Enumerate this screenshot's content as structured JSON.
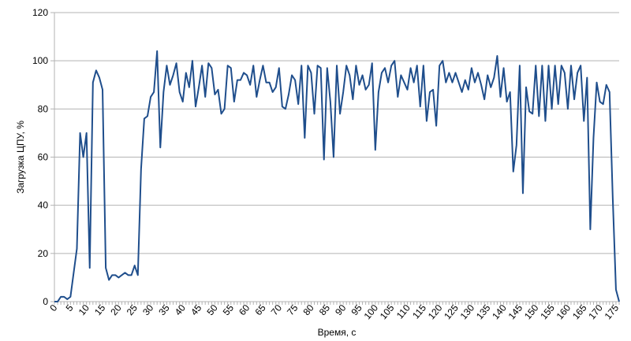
{
  "chart_data": {
    "type": "line",
    "title": "",
    "xlabel": "Время, с",
    "ylabel": "Загрузка ЦПУ, %",
    "xlim": [
      0,
      176
    ],
    "ylim": [
      0,
      120
    ],
    "x_ticks": [
      0,
      5,
      10,
      15,
      20,
      25,
      30,
      35,
      40,
      45,
      50,
      55,
      60,
      65,
      70,
      75,
      80,
      85,
      90,
      95,
      100,
      105,
      110,
      115,
      120,
      125,
      130,
      135,
      140,
      145,
      150,
      155,
      160,
      165,
      170,
      175
    ],
    "y_ticks": [
      0,
      20,
      40,
      60,
      80,
      100,
      120
    ],
    "grid": {
      "horizontal": true,
      "vertical": false
    },
    "legend": "none",
    "series": [
      {
        "color": "#1f4e8c",
        "x": [
          0,
          1,
          2,
          3,
          4,
          5,
          6,
          7,
          8,
          9,
          10,
          11,
          12,
          13,
          14,
          15,
          16,
          17,
          18,
          19,
          20,
          21,
          22,
          23,
          24,
          25,
          26,
          27,
          28,
          29,
          30,
          31,
          32,
          33,
          34,
          35,
          36,
          37,
          38,
          39,
          40,
          41,
          42,
          43,
          44,
          45,
          46,
          47,
          48,
          49,
          50,
          51,
          52,
          53,
          54,
          55,
          56,
          57,
          58,
          59,
          60,
          61,
          62,
          63,
          64,
          65,
          66,
          67,
          68,
          69,
          70,
          71,
          72,
          73,
          74,
          75,
          76,
          77,
          78,
          79,
          80,
          81,
          82,
          83,
          84,
          85,
          86,
          87,
          88,
          89,
          90,
          91,
          92,
          93,
          94,
          95,
          96,
          97,
          98,
          99,
          100,
          101,
          102,
          103,
          104,
          105,
          106,
          107,
          108,
          109,
          110,
          111,
          112,
          113,
          114,
          115,
          116,
          117,
          118,
          119,
          120,
          121,
          122,
          123,
          124,
          125,
          126,
          127,
          128,
          129,
          130,
          131,
          132,
          133,
          134,
          135,
          136,
          137,
          138,
          139,
          140,
          141,
          142,
          143,
          144,
          145,
          146,
          147,
          148,
          149,
          150,
          151,
          152,
          153,
          154,
          155,
          156,
          157,
          158,
          159,
          160,
          161,
          162,
          163,
          164,
          165,
          166,
          167,
          168,
          169,
          170,
          171,
          172,
          173,
          174,
          175,
          176
        ],
        "y": [
          0,
          0,
          2,
          2,
          1,
          2,
          12,
          22,
          70,
          60,
          70,
          14,
          91,
          96,
          93,
          88,
          14,
          9,
          11,
          11,
          10,
          11,
          12,
          11,
          11,
          15,
          11,
          55,
          76,
          77,
          85,
          87,
          104,
          64,
          87,
          98,
          90,
          94,
          99,
          87,
          83,
          95,
          89,
          100,
          81,
          89,
          98,
          85,
          99,
          97,
          86,
          88,
          78,
          80,
          98,
          97,
          83,
          92,
          92,
          95,
          94,
          90,
          98,
          85,
          92,
          98,
          91,
          91,
          87,
          89,
          97,
          81,
          80,
          86,
          94,
          92,
          82,
          98,
          68,
          98,
          95,
          78,
          98,
          97,
          59,
          97,
          83,
          60,
          98,
          78,
          87,
          98,
          94,
          84,
          98,
          90,
          94,
          88,
          90,
          99,
          63,
          87,
          95,
          97,
          91,
          98,
          100,
          85,
          94,
          91,
          88,
          97,
          91,
          98,
          81,
          98,
          75,
          87,
          88,
          73,
          98,
          100,
          91,
          95,
          91,
          95,
          91,
          87,
          92,
          88,
          97,
          91,
          95,
          90,
          84,
          94,
          89,
          93,
          102,
          85,
          97,
          83,
          87,
          54,
          65,
          98,
          45,
          89,
          79,
          78,
          98,
          77,
          98,
          75,
          98,
          80,
          98,
          82,
          98,
          95,
          80,
          98,
          84,
          95,
          98,
          75,
          93,
          30,
          68,
          91,
          83,
          82,
          90,
          87,
          43,
          5,
          0
        ]
      }
    ]
  }
}
